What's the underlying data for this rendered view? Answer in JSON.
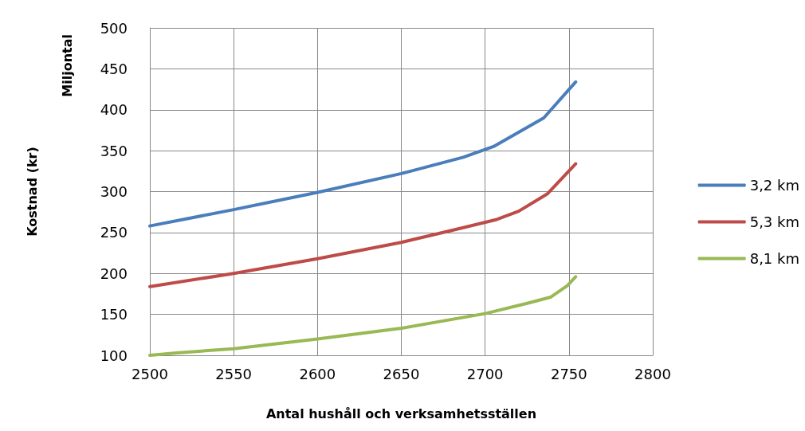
{
  "chart_data": {
    "type": "line",
    "ylabel": "Kostnad (kr)",
    "annotations": [
      "Miljontal"
    ],
    "xlabel": "Antal hushåll och verksamhetsställen",
    "xlim": [
      2500,
      2800
    ],
    "xticks": [
      2500,
      2550,
      2600,
      2650,
      2700,
      2750,
      2800
    ],
    "ylim": [
      100,
      500
    ],
    "yticks": [
      100,
      150,
      200,
      250,
      300,
      350,
      400,
      450,
      500
    ],
    "grid": true,
    "legend": "right",
    "marker": "none",
    "line_style": "solid",
    "series": [
      {
        "name": "3,2 km",
        "color": "#4a7ebb",
        "x": [
          2500,
          2550,
          2600,
          2650,
          2687,
          2705,
          2735,
          2754
        ],
        "values": [
          258,
          278,
          299,
          322,
          342,
          355,
          390,
          434
        ]
      },
      {
        "name": "5,3 km",
        "color": "#be4b48",
        "x": [
          2500,
          2550,
          2600,
          2650,
          2683,
          2707,
          2720,
          2737,
          2754
        ],
        "values": [
          184,
          200,
          218,
          238,
          254,
          266,
          276,
          297,
          334
        ]
      },
      {
        "name": "8,1 km",
        "color": "#98b954",
        "x": [
          2500,
          2516,
          2550,
          2600,
          2650,
          2700,
          2726,
          2739,
          2749,
          2754
        ],
        "values": [
          100,
          103,
          108,
          120,
          133,
          151,
          164,
          171,
          185,
          196
        ]
      }
    ]
  }
}
